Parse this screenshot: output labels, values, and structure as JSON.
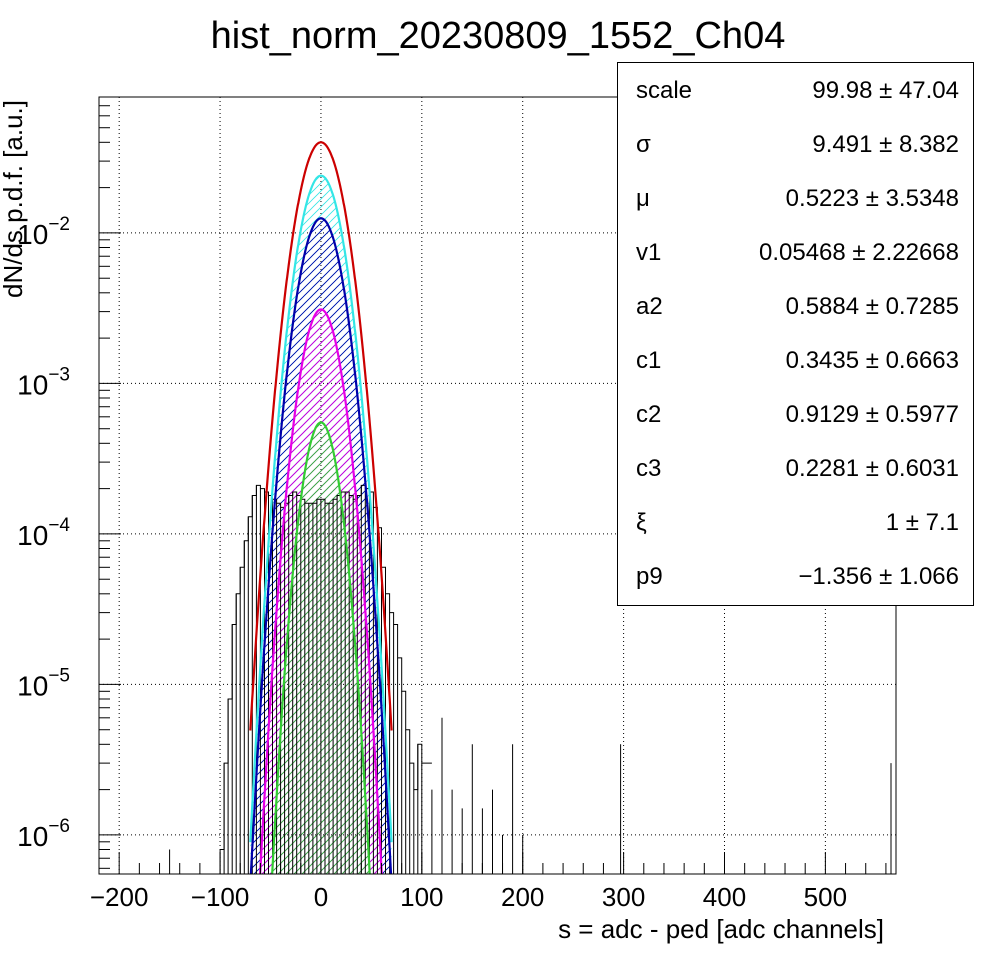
{
  "chart_data": {
    "type": "line",
    "title": "hist_norm_20230809_1552_Ch04",
    "xlabel": "s = adc - ped [adc channels]",
    "ylabel": "dN/ds p.d.f. [a.u.]",
    "xlim": [
      -220,
      570
    ],
    "ylim": [
      5.5e-07,
      0.08
    ],
    "yscale": "log",
    "grid": true,
    "x_ticks": [
      -200,
      -100,
      0,
      100,
      200,
      300,
      400,
      500
    ],
    "x_tick_labels": [
      "−200",
      "−100",
      "0",
      "100",
      "200",
      "300",
      "400",
      "500"
    ],
    "y_ticks": [
      1e-06,
      1e-05,
      0.0001,
      0.001,
      0.01
    ],
    "y_tick_labels": [
      {
        "base": "10",
        "exp": "−6"
      },
      {
        "base": "10",
        "exp": "−5"
      },
      {
        "base": "10",
        "exp": "−4"
      },
      {
        "base": "10",
        "exp": "−3"
      },
      {
        "base": "10",
        "exp": "−2"
      }
    ],
    "histogram": {
      "color": "#000000",
      "x": [
        -150,
        -100,
        -96,
        -92,
        -88,
        -84,
        -80,
        -76,
        -72,
        -68,
        -64,
        -60,
        -56,
        -52,
        -48,
        -44,
        -40,
        -36,
        -32,
        -28,
        -24,
        -20,
        -16,
        -12,
        -8,
        -4,
        0,
        4,
        8,
        12,
        16,
        20,
        24,
        28,
        32,
        36,
        40,
        44,
        48,
        52,
        56,
        60,
        64,
        68,
        72,
        76,
        80,
        84,
        88,
        92,
        96,
        100,
        110,
        120,
        130,
        140,
        150,
        160,
        170,
        180,
        190,
        200,
        297,
        565
      ],
      "y": [
        8e-07,
        8e-07,
        3e-06,
        8e-06,
        2.5e-05,
        4e-05,
        6e-05,
        9e-05,
        0.00013,
        0.00018,
        0.00021,
        0.0002,
        0.00019,
        0.00018,
        0.00017,
        0.00016,
        0.00015,
        0.00016,
        0.00018,
        0.00019,
        0.00018,
        0.00017,
        0.00016,
        0.00016,
        0.00016,
        0.00017,
        0.00017,
        0.00016,
        0.00016,
        0.00017,
        0.00018,
        0.00019,
        0.00019,
        0.00018,
        0.00017,
        0.00018,
        0.00021,
        0.0002,
        0.00019,
        0.00015,
        0.00011,
        6e-05,
        4e-05,
        3e-05,
        2.5e-05,
        1.5e-05,
        9e-06,
        5e-06,
        3e-06,
        2e-06,
        4e-06,
        3e-06,
        2e-06,
        6e-06,
        2e-06,
        1.5e-06,
        4e-06,
        1.5e-06,
        2e-06,
        1e-06,
        4e-06,
        1e-06,
        4e-06,
        3e-06
      ]
    },
    "series": [
      {
        "color": "#cc0000",
        "peak": 0.04,
        "sigma": 16.5,
        "fill": false
      },
      {
        "color": "#33e6e6",
        "peak": 0.024,
        "sigma": 15.5,
        "fill": "hatch"
      },
      {
        "color": "#0000aa",
        "peak": 0.0125,
        "sigma": 15.5,
        "fill": "hatch"
      },
      {
        "color": "#e600e6",
        "peak": 0.0031,
        "sigma": 14.5,
        "fill": "hatch"
      },
      {
        "color": "#33cc33",
        "peak": 0.00055,
        "sigma": 13.0,
        "fill": "hatch"
      }
    ],
    "stats": [
      {
        "name": "scale",
        "value": "99.98 ± 47.04"
      },
      {
        "name": "σ",
        "value": "9.491 ± 8.382"
      },
      {
        "name": "μ",
        "value": "0.5223 ± 3.5348"
      },
      {
        "name": "v1",
        "value": "0.05468 ± 2.22668"
      },
      {
        "name": "a2",
        "value": "0.5884 ± 0.7285"
      },
      {
        "name": "c1",
        "value": "0.3435 ± 0.6663"
      },
      {
        "name": "c2",
        "value": "0.9129 ± 0.5977"
      },
      {
        "name": "c3",
        "value": "0.2281 ± 0.6031"
      },
      {
        "name": "ξ",
        "value": "1 ± 7.1"
      },
      {
        "name": "p9",
        "value": "−1.356 ± 1.066"
      }
    ]
  }
}
